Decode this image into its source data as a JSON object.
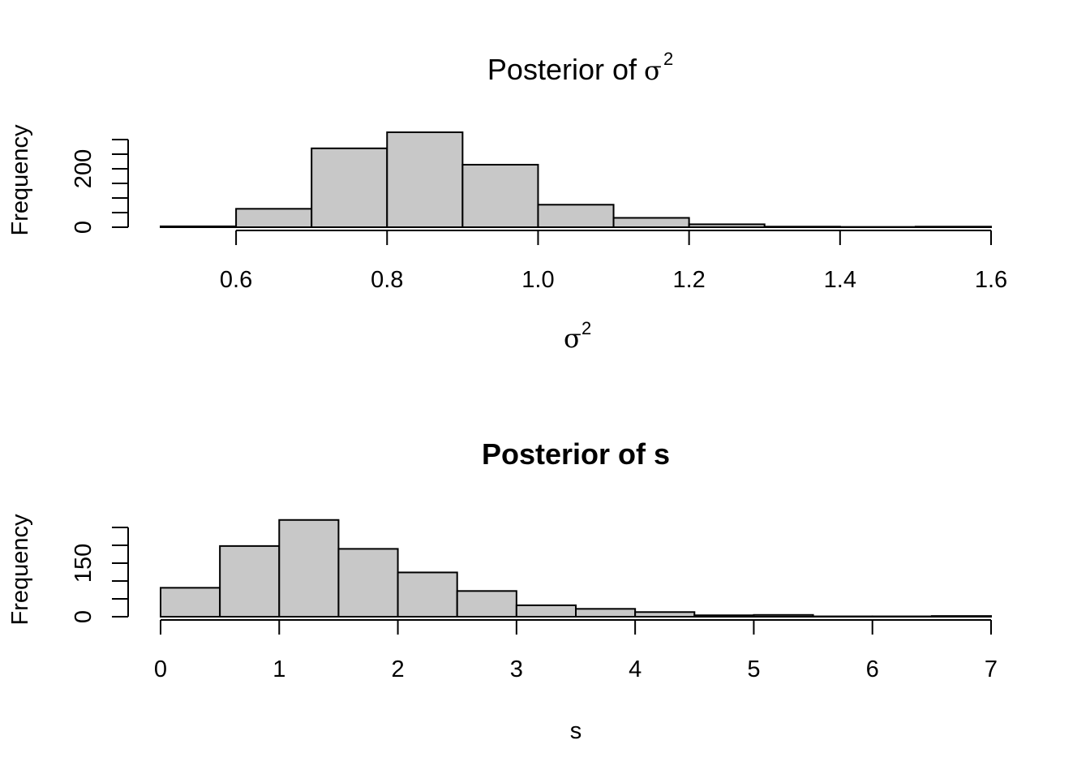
{
  "chart_data": [
    {
      "type": "bar",
      "subtype": "histogram",
      "title": "Posterior of σ²",
      "title_text": "Posterior of ",
      "title_symbol": "σ",
      "title_sup": "2",
      "xlabel_symbol": "σ",
      "xlabel_sup": "2",
      "ylabel": "Frequency",
      "bin_edges": [
        0.5,
        0.6,
        0.7,
        0.8,
        0.9,
        1.0,
        1.1,
        1.2,
        1.3,
        1.4,
        1.5,
        1.6
      ],
      "values": [
        3,
        63,
        270,
        325,
        214,
        77,
        32,
        10,
        2,
        1,
        2
      ],
      "xlim": [
        0.5,
        1.6
      ],
      "ylim": [
        0,
        300
      ],
      "xticks": [
        0.6,
        0.8,
        1.0,
        1.2,
        1.4,
        1.6
      ],
      "xtick_labels": [
        "0.6",
        "0.8",
        "1.0",
        "1.2",
        "1.4",
        "1.6"
      ],
      "yticks": [
        0,
        50,
        100,
        150,
        200,
        250,
        300
      ],
      "ytick_labels": [
        "0",
        "",
        "",
        "",
        "200",
        "",
        ""
      ]
    },
    {
      "type": "bar",
      "subtype": "histogram",
      "title": "Posterior of s",
      "xlabel": "s",
      "ylabel": "Frequency",
      "bin_edges": [
        0,
        0.5,
        1.0,
        1.5,
        2.0,
        2.5,
        3.0,
        3.5,
        4.0,
        4.5,
        5.0,
        5.5,
        6.0,
        6.5,
        7.0
      ],
      "values": [
        81,
        198,
        271,
        190,
        124,
        72,
        32,
        22,
        13,
        4,
        5,
        1,
        1,
        2
      ],
      "xlim": [
        0,
        7
      ],
      "ylim": [
        0,
        250
      ],
      "xticks": [
        0,
        1,
        2,
        3,
        4,
        5,
        6,
        7
      ],
      "xtick_labels": [
        "0",
        "1",
        "2",
        "3",
        "4",
        "5",
        "6",
        "7"
      ],
      "yticks": [
        0,
        50,
        100,
        150,
        200,
        250
      ],
      "ytick_labels": [
        "0",
        "",
        "",
        "150",
        "",
        ""
      ]
    }
  ]
}
